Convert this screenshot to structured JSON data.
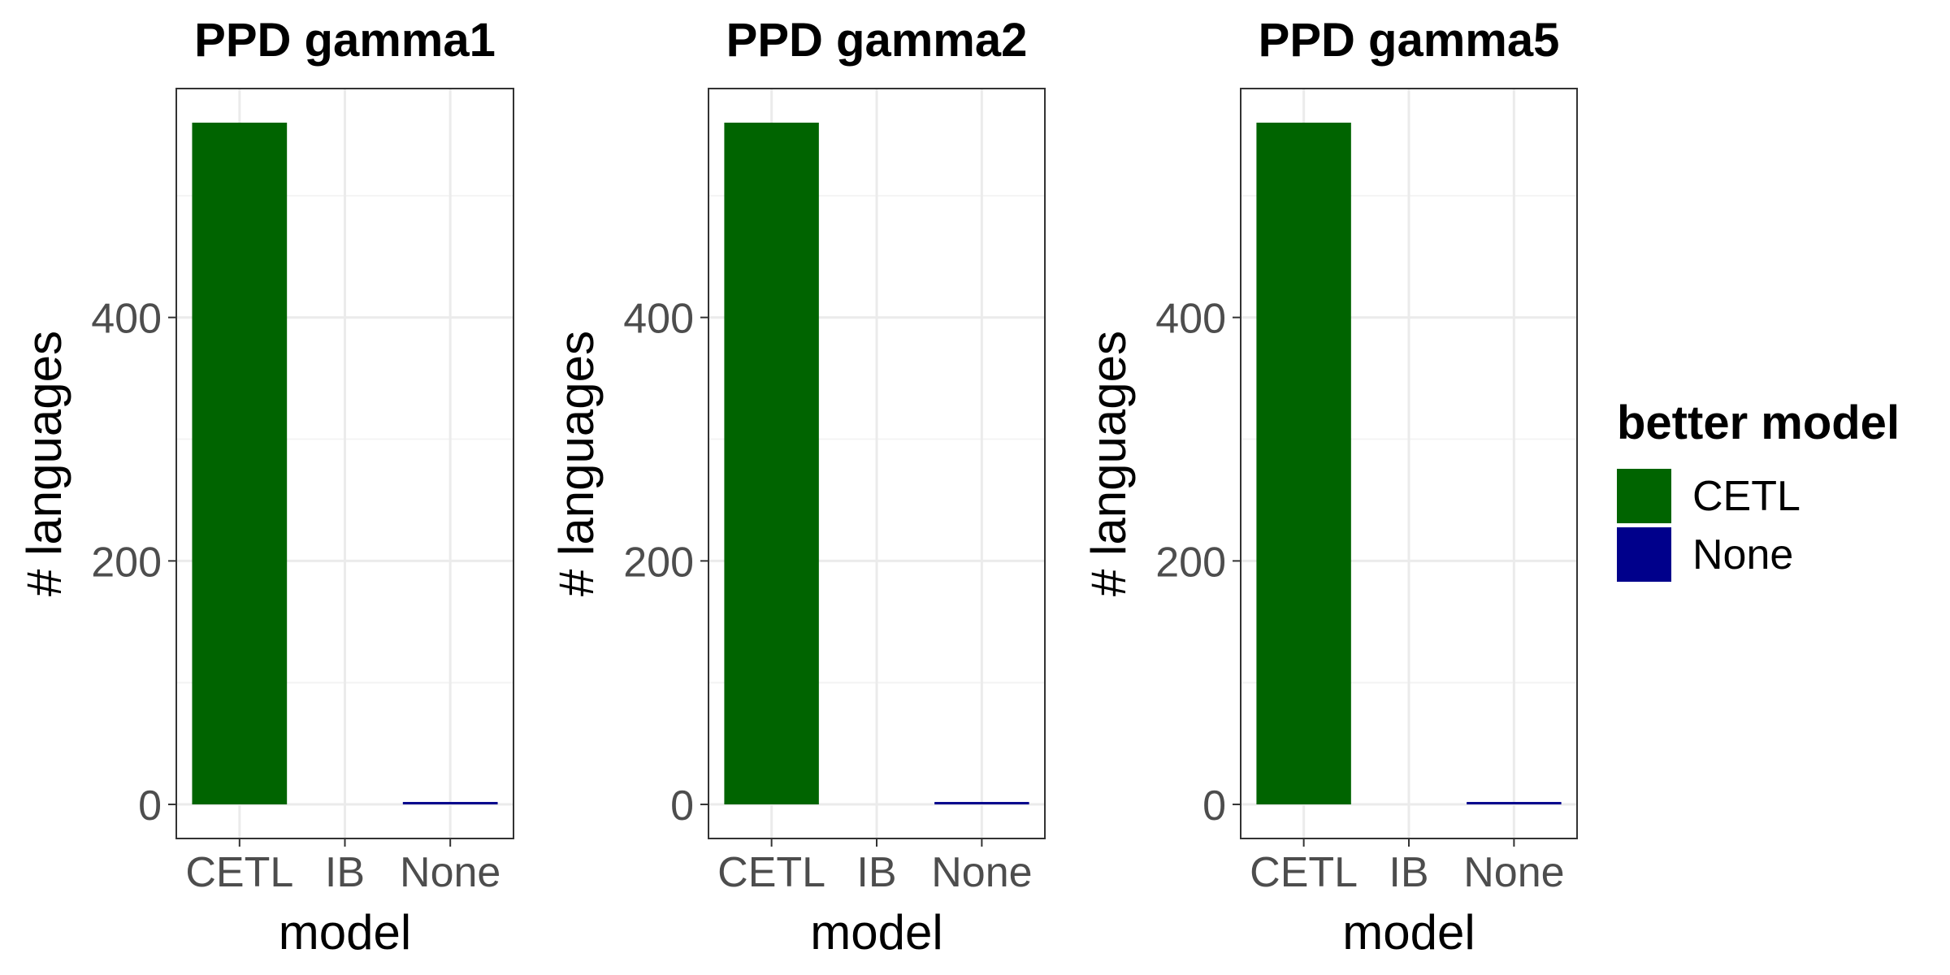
{
  "chart_data": [
    {
      "type": "bar",
      "title": "PPD gamma1",
      "xlabel": "model",
      "ylabel": "# languages",
      "categories": [
        "CETL",
        "IB",
        "None"
      ],
      "values": [
        560,
        0,
        2
      ],
      "colors": [
        "#006400",
        null,
        "#00008B"
      ],
      "ylim": [
        -28,
        588
      ],
      "yticks": [
        0,
        200,
        400
      ],
      "yminor": [
        100,
        300,
        500
      ],
      "grid": true
    },
    {
      "type": "bar",
      "title": "PPD gamma2",
      "xlabel": "model",
      "ylabel": "# languages",
      "categories": [
        "CETL",
        "IB",
        "None"
      ],
      "values": [
        560,
        0,
        2
      ],
      "colors": [
        "#006400",
        null,
        "#00008B"
      ],
      "ylim": [
        -28,
        588
      ],
      "yticks": [
        0,
        200,
        400
      ],
      "yminor": [
        100,
        300,
        500
      ],
      "grid": true
    },
    {
      "type": "bar",
      "title": "PPD gamma5",
      "xlabel": "model",
      "ylabel": "# languages",
      "categories": [
        "CETL",
        "IB",
        "None"
      ],
      "values": [
        560,
        0,
        2
      ],
      "colors": [
        "#006400",
        null,
        "#00008B"
      ],
      "ylim": [
        -28,
        588
      ],
      "yticks": [
        0,
        200,
        400
      ],
      "yminor": [
        100,
        300,
        500
      ],
      "grid": true
    }
  ],
  "legend": {
    "title": "better model",
    "placement": "right",
    "items": [
      {
        "label": "CETL",
        "color": "#006400"
      },
      {
        "label": "None",
        "color": "#00008B"
      }
    ]
  }
}
